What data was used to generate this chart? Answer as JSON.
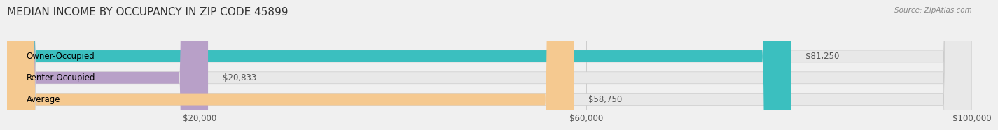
{
  "title": "MEDIAN INCOME BY OCCUPANCY IN ZIP CODE 45899",
  "source": "Source: ZipAtlas.com",
  "categories": [
    "Owner-Occupied",
    "Renter-Occupied",
    "Average"
  ],
  "values": [
    81250,
    20833,
    58750
  ],
  "bar_colors": [
    "#3bbfbf",
    "#b8a0c8",
    "#f5c990"
  ],
  "bar_labels": [
    "$81,250",
    "$20,833",
    "$58,750"
  ],
  "xlim": [
    0,
    100000
  ],
  "xticks": [
    20000,
    60000,
    100000
  ],
  "xtick_labels": [
    "$20,000",
    "$60,000",
    "$100,000"
  ],
  "background_color": "#f0f0f0",
  "bar_bg_color": "#e8e8e8",
  "title_fontsize": 11,
  "label_fontsize": 8.5,
  "tick_fontsize": 8.5
}
